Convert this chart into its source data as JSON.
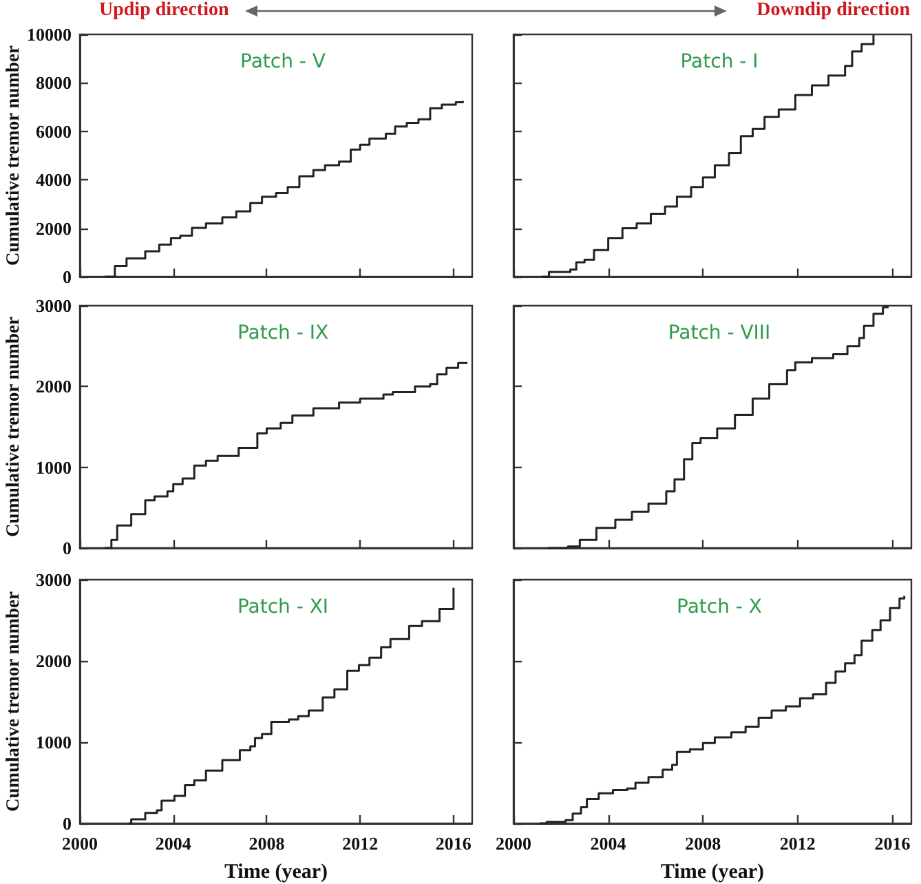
{
  "chart_data": [
    {
      "type": "step",
      "title": "Patch - V",
      "ylabel": "Cumulative tremor number",
      "annotations": [
        "Updip direction"
      ],
      "color": "#222222",
      "marker": "none",
      "grid": false,
      "tick_labels": "y",
      "xlim": [
        2000,
        2016.8
      ],
      "xticks": [
        2000,
        2004,
        2008,
        2012,
        2016
      ],
      "ylim": [
        0,
        10000
      ],
      "yticks": [
        0,
        2000,
        4000,
        6000,
        8000,
        10000
      ],
      "x": [
        2001.06,
        2001.5,
        2002.0,
        2002.8,
        2003.4,
        2003.9,
        2004.3,
        2004.8,
        2005.4,
        2006.1,
        2006.7,
        2007.3,
        2007.8,
        2008.4,
        2008.9,
        2009.4,
        2010.0,
        2010.5,
        2011.1,
        2011.6,
        2012.0,
        2012.4,
        2013.1,
        2013.5,
        2014.0,
        2014.5,
        2015.0,
        2015.5,
        2016.1,
        2016.4
      ],
      "values": [
        0,
        440,
        760,
        1050,
        1330,
        1600,
        1700,
        2020,
        2200,
        2450,
        2700,
        3050,
        3300,
        3450,
        3700,
        4150,
        4400,
        4600,
        4750,
        5250,
        5450,
        5700,
        5900,
        6200,
        6350,
        6500,
        6950,
        7100,
        7200,
        7250
      ]
    },
    {
      "type": "step",
      "title": "Patch - I",
      "annotations": [
        "Downdip direction"
      ],
      "color": "#222222",
      "marker": "none",
      "grid": false,
      "tick_labels": false,
      "xlim": [
        2000,
        2016.8
      ],
      "xticks": [
        2000,
        2004,
        2008,
        2012,
        2016
      ],
      "ylim": [
        0,
        10000
      ],
      "yticks": [
        0,
        2000,
        4000,
        6000,
        8000,
        10000
      ],
      "x": [
        2001.2,
        2001.5,
        2002.4,
        2002.65,
        2003.0,
        2003.4,
        2004.0,
        2004.6,
        2005.2,
        2005.8,
        2006.4,
        2006.9,
        2007.5,
        2008.0,
        2008.5,
        2009.1,
        2009.6,
        2010.1,
        2010.6,
        2011.2,
        2011.9,
        2012.6,
        2013.3,
        2014.0,
        2014.3,
        2014.7,
        2015.2
      ],
      "values": [
        0,
        200,
        300,
        600,
        700,
        1100,
        1600,
        2000,
        2200,
        2600,
        2900,
        3300,
        3700,
        4100,
        4600,
        5100,
        5800,
        6100,
        6600,
        6900,
        7500,
        7900,
        8300,
        8700,
        9300,
        9600,
        10000
      ]
    },
    {
      "type": "step",
      "title": "Patch - IX",
      "ylabel": "Cumulative tremor number",
      "color": "#222222",
      "marker": "none",
      "grid": false,
      "tick_labels": "y",
      "xlim": [
        2000,
        2016.8
      ],
      "xticks": [
        2000,
        2004,
        2008,
        2012,
        2016
      ],
      "ylim": [
        0,
        3000
      ],
      "yticks": [
        0,
        1000,
        2000,
        3000
      ],
      "x": [
        2001.06,
        2001.35,
        2001.6,
        2002.2,
        2002.8,
        2003.2,
        2003.75,
        2004.0,
        2004.4,
        2004.9,
        2005.4,
        2005.9,
        2006.8,
        2007.6,
        2008.0,
        2008.6,
        2009.1,
        2010.0,
        2011.1,
        2012.0,
        2013.0,
        2013.4,
        2014.35,
        2015.0,
        2015.3,
        2015.7,
        2016.2,
        2016.6
      ],
      "values": [
        0,
        100,
        280,
        420,
        590,
        640,
        700,
        790,
        860,
        1020,
        1080,
        1140,
        1240,
        1420,
        1480,
        1550,
        1640,
        1730,
        1800,
        1850,
        1900,
        1930,
        2000,
        2030,
        2150,
        2230,
        2290,
        2290
      ]
    },
    {
      "type": "step",
      "title": "Patch - VIII",
      "color": "#222222",
      "marker": "none",
      "grid": false,
      "tick_labels": false,
      "xlim": [
        2000,
        2016.8
      ],
      "xticks": [
        2000,
        2004,
        2008,
        2012,
        2016
      ],
      "ylim": [
        0,
        3000
      ],
      "yticks": [
        0,
        1000,
        2000,
        3000
      ],
      "x": [
        2001.45,
        2002.3,
        2002.8,
        2003.5,
        2004.3,
        2005.0,
        2005.7,
        2006.45,
        2006.8,
        2007.2,
        2007.55,
        2007.9,
        2008.6,
        2009.35,
        2010.1,
        2010.8,
        2011.55,
        2011.9,
        2012.6,
        2013.5,
        2014.1,
        2014.6,
        2014.8,
        2015.2,
        2015.6,
        2015.8
      ],
      "values": [
        0,
        20,
        100,
        250,
        350,
        450,
        550,
        700,
        850,
        1100,
        1300,
        1360,
        1480,
        1650,
        1850,
        2030,
        2200,
        2300,
        2350,
        2400,
        2500,
        2600,
        2750,
        2900,
        2980,
        3000
      ]
    },
    {
      "type": "step",
      "title": "Patch - XI",
      "xlabel": "Time (year)",
      "ylabel": "Cumulative tremor number",
      "color": "#222222",
      "marker": "none",
      "grid": false,
      "xlim": [
        2000,
        2016.8
      ],
      "xticks": [
        2000,
        2004,
        2008,
        2012,
        2016
      ],
      "ylim": [
        0,
        3000
      ],
      "yticks": [
        0,
        1000,
        2000,
        3000
      ],
      "x": [
        2002.1,
        2002.2,
        2002.8,
        2003.3,
        2003.5,
        2004.05,
        2004.5,
        2004.9,
        2005.4,
        2006.1,
        2006.85,
        2007.3,
        2007.5,
        2007.8,
        2008.2,
        2008.95,
        2009.35,
        2009.8,
        2010.4,
        2010.9,
        2011.45,
        2011.95,
        2012.4,
        2012.9,
        2013.3,
        2014.1,
        2014.65,
        2015.4,
        2016.0
      ],
      "values": [
        0,
        50,
        130,
        160,
        280,
        340,
        470,
        530,
        650,
        780,
        900,
        950,
        1050,
        1100,
        1250,
        1280,
        1320,
        1390,
        1550,
        1650,
        1880,
        1950,
        2040,
        2170,
        2270,
        2430,
        2490,
        2640,
        2900
      ]
    },
    {
      "type": "step",
      "title": "Patch - X",
      "xlabel": "Time (year)",
      "color": "#222222",
      "marker": "none",
      "grid": false,
      "tick_labels": "x",
      "xlim": [
        2000,
        2016.8
      ],
      "xticks": [
        2000,
        2004,
        2008,
        2012,
        2016
      ],
      "ylim": [
        0,
        3000
      ],
      "yticks": [
        0,
        1000,
        2000,
        3000
      ],
      "x": [
        2001.1,
        2001.4,
        2002.2,
        2002.5,
        2002.85,
        2003.1,
        2003.6,
        2004.2,
        2004.8,
        2005.15,
        2005.7,
        2006.3,
        2006.7,
        2006.9,
        2007.45,
        2008.0,
        2008.5,
        2009.2,
        2009.8,
        2010.35,
        2010.9,
        2011.5,
        2012.1,
        2012.65,
        2013.2,
        2013.6,
        2014.0,
        2014.4,
        2014.7,
        2015.15,
        2015.5,
        2015.9,
        2016.3,
        2016.5
      ],
      "values": [
        0,
        20,
        40,
        120,
        200,
        300,
        370,
        410,
        430,
        500,
        570,
        660,
        720,
        880,
        910,
        990,
        1060,
        1120,
        1190,
        1300,
        1390,
        1440,
        1540,
        1590,
        1730,
        1870,
        1970,
        2070,
        2250,
        2380,
        2500,
        2650,
        2770,
        2800
      ]
    }
  ]
}
